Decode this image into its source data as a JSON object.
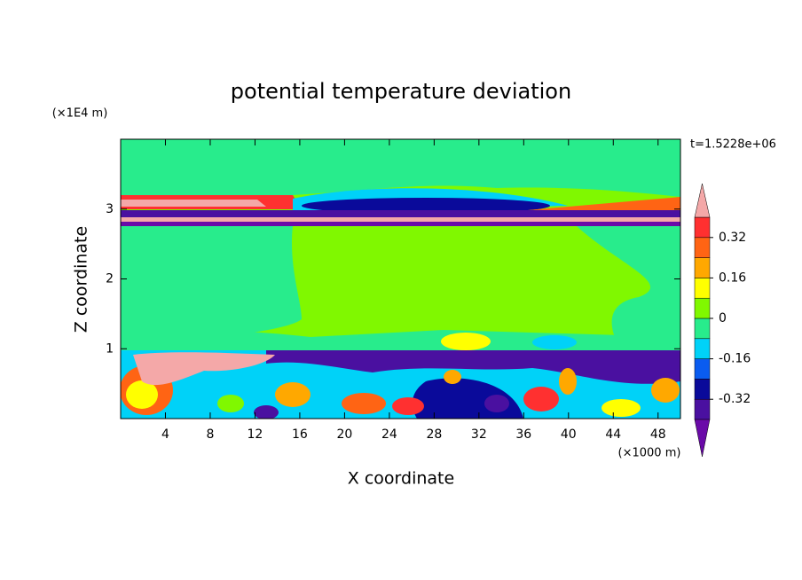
{
  "chart_data": {
    "type": "contourf",
    "title": "potential temperature deviation",
    "x_label": "X coordinate",
    "y_label": "Z coordinate",
    "x_unit": "(×1000 m)",
    "y_unit": "(×1E4 m)",
    "annotation": "t=1.5228e+06",
    "xlim": [
      0,
      50
    ],
    "ylim": [
      0,
      4
    ],
    "xticks": [
      4,
      8,
      12,
      16,
      20,
      24,
      28,
      32,
      36,
      40,
      44,
      48
    ],
    "yticks": [
      1,
      2,
      3
    ],
    "levels": [
      -0.4,
      -0.32,
      -0.24,
      -0.16,
      -0.08,
      0,
      0.08,
      0.16,
      0.24,
      0.32,
      0.4
    ],
    "colors": [
      "#6a0aa8",
      "#4a10a0",
      "#0a0a9a",
      "#0a5cf0",
      "#00d2f8",
      "#28ec8c",
      "#80f800",
      "#ffff00",
      "#ffa800",
      "#ff6414",
      "#ff3030",
      "#f4a8a8"
    ],
    "colorbar_ticks": [
      0.32,
      0.16,
      0,
      -0.16,
      -0.32
    ]
  }
}
